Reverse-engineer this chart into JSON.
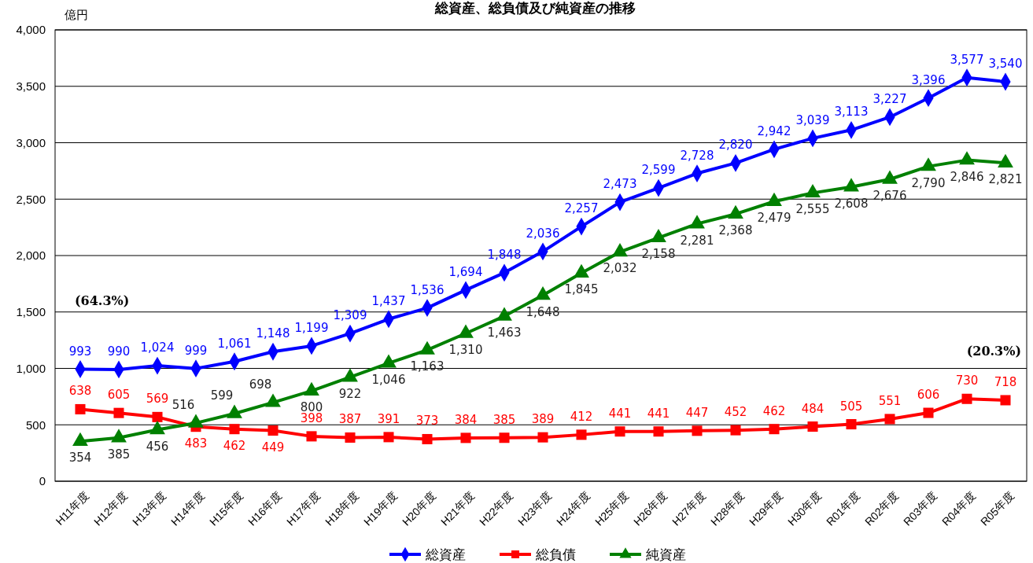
{
  "chart_data": {
    "type": "line",
    "title": "総資産、総負債及び純資産の推移",
    "ylabel": "億円",
    "categories": [
      "H11年度",
      "H12年度",
      "H13年度",
      "H14年度",
      "H15年度",
      "H16年度",
      "H17年度",
      "H18年度",
      "H19年度",
      "H20年度",
      "H21年度",
      "H22年度",
      "H23年度",
      "H24年度",
      "H25年度",
      "H26年度",
      "H27年度",
      "H28年度",
      "H29年度",
      "H30年度",
      "R01年度",
      "R02年度",
      "R03年度",
      "R04年度",
      "R05年度"
    ],
    "series": [
      {
        "name": "総資産",
        "color": "#0000ff",
        "marker": "diamond",
        "values": [
          993,
          990,
          1024,
          999,
          1061,
          1148,
          1199,
          1309,
          1437,
          1536,
          1694,
          1848,
          2036,
          2257,
          2473,
          2599,
          2728,
          2820,
          2942,
          3039,
          3113,
          3227,
          3396,
          3577,
          3540
        ],
        "value_labels": [
          "993",
          "990",
          "1,024",
          "999",
          "1,061",
          "1,148",
          "1,199",
          "1,309",
          "1,437",
          "1,536",
          "1,694",
          "1,848",
          "2,036",
          "2,257",
          "2,473",
          "2,599",
          "2,728",
          "2,820",
          "2,942",
          "3,039",
          "3,113",
          "3,227",
          "3,396",
          "3,577",
          "3,540"
        ]
      },
      {
        "name": "総負債",
        "color": "#ff0000",
        "marker": "square",
        "values": [
          638,
          605,
          569,
          483,
          462,
          449,
          398,
          387,
          391,
          373,
          384,
          385,
          389,
          412,
          441,
          441,
          447,
          452,
          462,
          484,
          505,
          551,
          606,
          730,
          718
        ],
        "value_labels": [
          "638",
          "605",
          "569",
          "483",
          "462",
          "449",
          "398",
          "387",
          "391",
          "373",
          "384",
          "385",
          "389",
          "412",
          "441",
          "441",
          "447",
          "452",
          "462",
          "484",
          "505",
          "551",
          "606",
          "730",
          "718"
        ]
      },
      {
        "name": "純資産",
        "color": "#008000",
        "marker": "triangle",
        "values": [
          354,
          385,
          456,
          516,
          599,
          698,
          800,
          922,
          1046,
          1163,
          1310,
          1463,
          1648,
          1845,
          2032,
          2158,
          2281,
          2368,
          2479,
          2555,
          2608,
          2676,
          2790,
          2846,
          2821
        ],
        "value_labels": [
          "354",
          "385",
          "456",
          "516",
          "599",
          "698",
          "800",
          "922",
          "1,046",
          "1,163",
          "1,310",
          "1,463",
          "1,648",
          "1,845",
          "2,032",
          "2,158",
          "2,281",
          "2,368",
          "2,479",
          "2,555",
          "2,608",
          "2,676",
          "2,790",
          "2,846",
          "2,821"
        ]
      }
    ],
    "ylim": [
      0,
      4000
    ],
    "yticks": [
      0,
      {
        "value": 500,
        "label": "500"
      },
      {
        "value": 1000,
        "label": "1,000"
      },
      {
        "value": 1500,
        "label": "1,500"
      },
      {
        "value": 2000,
        "label": "2,000"
      },
      {
        "value": 2500,
        "label": "2,500"
      },
      {
        "value": 3000,
        "label": "3,000"
      },
      {
        "value": 3500,
        "label": "3,500"
      },
      {
        "value": 4000,
        "label": "4,000"
      }
    ],
    "grid": "y",
    "legend": "bottom",
    "line_style": "solid",
    "annotations": [
      "(64.3%)",
      "(20.3%)"
    ]
  }
}
